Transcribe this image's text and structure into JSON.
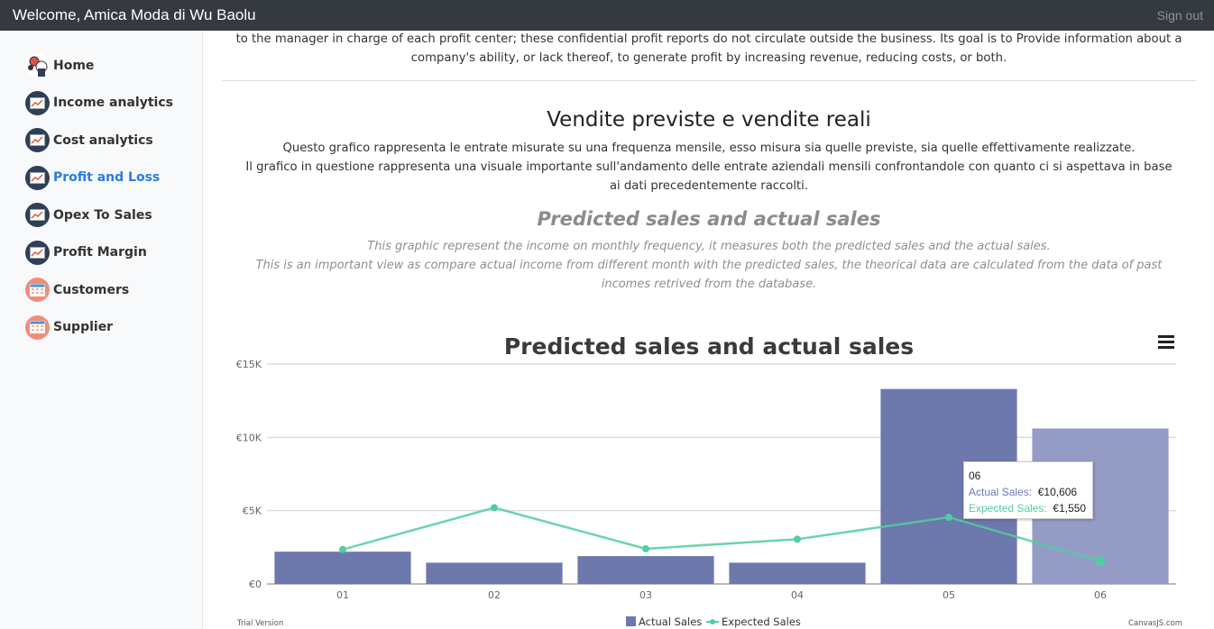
{
  "header": {
    "title": "Welcome, Amica Moda di Wu Baolu",
    "signout": "Sign out"
  },
  "sidebar": {
    "items": [
      {
        "label": "Home",
        "icon": "home-icon"
      },
      {
        "label": "Income analytics",
        "icon": "chart-icon"
      },
      {
        "label": "Cost analytics",
        "icon": "chart-icon"
      },
      {
        "label": "Profit and Loss",
        "icon": "chart-icon",
        "active": true
      },
      {
        "label": "Opex To Sales",
        "icon": "chart-icon"
      },
      {
        "label": "Profit Margin",
        "icon": "chart-icon"
      },
      {
        "label": "Customers",
        "icon": "table-icon"
      },
      {
        "label": "Supplier",
        "icon": "table-icon"
      }
    ]
  },
  "main": {
    "intro": "to the manager in charge of each profit center; these confidential profit reports do not circulate outside the business. Its goal is to Provide information about a company's ability, or lack thereof, to generate profit by increasing revenue, reducing costs, or both.",
    "it_title": "Vendite previste e vendite reali",
    "it_desc_1": "Questo grafico rappresenta le entrate misurate su una frequenza mensile, esso misura sia quelle previste, sia quelle effettivamente realizzate.",
    "it_desc_2": "Il grafico in questione rappresenta una visuale importante sull'andamento delle entrate aziendali mensili confrontandole con quanto ci si aspettava in base ai dati precedentemente raccolti.",
    "en_title": "Predicted sales and actual sales",
    "en_desc_1": "This graphic represent the income on monthly frequency, it measures both the predicted sales and the actual sales.",
    "en_desc_2": "This is an important view as compare actual income from different month with the predicted sales, the theorical data are calculated from the data of past incomes retrived from the database."
  },
  "chart_data": {
    "type": "bar",
    "title": "Predicted sales and actual sales",
    "categories": [
      "01",
      "02",
      "03",
      "04",
      "05",
      "06"
    ],
    "yticks": [
      "€0",
      "€5K",
      "€10K",
      "€15K"
    ],
    "ylim": [
      0,
      15000
    ],
    "series": [
      {
        "name": "Actual Sales",
        "type": "bar",
        "values": [
          2200,
          1450,
          1900,
          1450,
          13300,
          10606
        ],
        "color": "#6d78ad"
      },
      {
        "name": "Expected Sales",
        "type": "line",
        "values": [
          2350,
          5200,
          2400,
          3050,
          4550,
          1550
        ],
        "color": "#51cda0"
      }
    ],
    "tooltip": {
      "category": "06",
      "actual_label": "Actual Sales:",
      "actual_value": "€10,606",
      "expected_label": "Expected Sales:",
      "expected_value": "€1,550"
    },
    "footer_left": "Trial Version",
    "footer_right": "CanvasJS.com",
    "legend": "bottom-center",
    "grid": true
  }
}
